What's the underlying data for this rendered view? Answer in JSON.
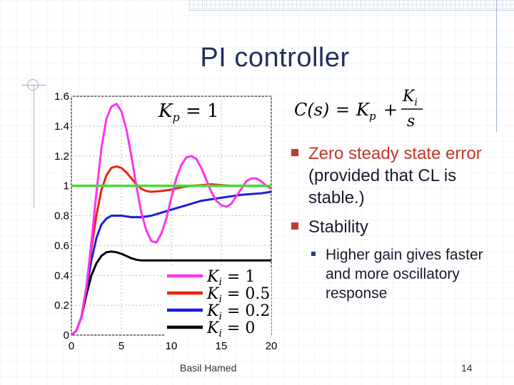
{
  "slide": {
    "title": "PI controller",
    "formula": {
      "lhs": "C(s)",
      "eq": "=",
      "kp": "K",
      "kp_sub": "p",
      "plus": "+",
      "num": "K",
      "num_sub": "i",
      "den": "s"
    },
    "bullets": [
      {
        "highlight": "Zero steady state error",
        "rest": " (provided that CL is stable.)"
      },
      {
        "highlight": "",
        "rest": "Stability"
      }
    ],
    "sub_bullets": [
      "Higher gain gives faster and more oscillatory response"
    ],
    "footer_author": "Basil Hamed",
    "page_number": "14"
  },
  "chart_data": {
    "type": "line",
    "title": "Kp = 1",
    "title_parts": {
      "k": "K",
      "sub": "p",
      "rest": " = 1"
    },
    "xlabel": "",
    "ylabel": "",
    "xlim": [
      0,
      20
    ],
    "ylim": [
      0,
      1.6
    ],
    "xticks": [
      0,
      5,
      10,
      15,
      20
    ],
    "yticks": [
      0,
      0.2,
      0.4,
      0.6,
      0.8,
      1,
      1.2,
      1.4,
      1.6
    ],
    "ytick_labels": [
      "0",
      "0.2",
      "0.4",
      "0.6",
      "0.8",
      "1",
      "1.2",
      "1.4",
      "1.6"
    ],
    "grid": true,
    "legend_position": "bottom-right",
    "reference": {
      "y": 1,
      "color": "#44dd33"
    },
    "series": [
      {
        "legend": {
          "k": "K",
          "sub": "i",
          "rest": " = 1"
        },
        "color": "#ff33ee",
        "points": [
          [
            0,
            0
          ],
          [
            0.5,
            0.03
          ],
          [
            1,
            0.12
          ],
          [
            1.5,
            0.32
          ],
          [
            2,
            0.62
          ],
          [
            2.5,
            0.95
          ],
          [
            3,
            1.25
          ],
          [
            3.5,
            1.45
          ],
          [
            4,
            1.53
          ],
          [
            4.5,
            1.55
          ],
          [
            5,
            1.5
          ],
          [
            5.5,
            1.38
          ],
          [
            6,
            1.2
          ],
          [
            6.5,
            1.0
          ],
          [
            7,
            0.82
          ],
          [
            7.5,
            0.7
          ],
          [
            8,
            0.63
          ],
          [
            8.5,
            0.62
          ],
          [
            9,
            0.68
          ],
          [
            9.5,
            0.78
          ],
          [
            10,
            0.92
          ],
          [
            10.5,
            1.05
          ],
          [
            11,
            1.14
          ],
          [
            11.5,
            1.19
          ],
          [
            12,
            1.2
          ],
          [
            12.5,
            1.18
          ],
          [
            13,
            1.12
          ],
          [
            13.5,
            1.04
          ],
          [
            14,
            0.96
          ],
          [
            14.5,
            0.9
          ],
          [
            15,
            0.87
          ],
          [
            15.5,
            0.86
          ],
          [
            16,
            0.88
          ],
          [
            16.5,
            0.93
          ],
          [
            17,
            0.98
          ],
          [
            17.5,
            1.03
          ],
          [
            18,
            1.05
          ],
          [
            18.5,
            1.05
          ],
          [
            19,
            1.03
          ],
          [
            19.5,
            1.0
          ],
          [
            20,
            0.98
          ]
        ]
      },
      {
        "legend": {
          "k": "K",
          "sub": "i",
          "rest": " = 0.5"
        },
        "color": "#ee2211",
        "points": [
          [
            0,
            0
          ],
          [
            0.5,
            0.03
          ],
          [
            1,
            0.12
          ],
          [
            1.5,
            0.32
          ],
          [
            2,
            0.58
          ],
          [
            2.5,
            0.8
          ],
          [
            3,
            0.97
          ],
          [
            3.5,
            1.07
          ],
          [
            4,
            1.12
          ],
          [
            4.5,
            1.13
          ],
          [
            5,
            1.12
          ],
          [
            5.5,
            1.09
          ],
          [
            6,
            1.05
          ],
          [
            6.5,
            1.01
          ],
          [
            7,
            0.98
          ],
          [
            7.5,
            0.965
          ],
          [
            8,
            0.96
          ],
          [
            9,
            0.965
          ],
          [
            10,
            0.975
          ],
          [
            11,
            0.99
          ],
          [
            12,
            1.0
          ],
          [
            13,
            1.005
          ],
          [
            14,
            1.01
          ],
          [
            15,
            1.005
          ],
          [
            16,
            1.0
          ],
          [
            17,
            1.0
          ],
          [
            18,
            1.0
          ],
          [
            19,
            1.0
          ],
          [
            20,
            1.0
          ]
        ]
      },
      {
        "legend": {
          "k": "K",
          "sub": "i",
          "rest": " = 0.2"
        },
        "color": "#1a1fdd",
        "points": [
          [
            0,
            0
          ],
          [
            0.5,
            0.03
          ],
          [
            1,
            0.12
          ],
          [
            1.5,
            0.3
          ],
          [
            2,
            0.5
          ],
          [
            2.5,
            0.65
          ],
          [
            3,
            0.74
          ],
          [
            3.5,
            0.78
          ],
          [
            4,
            0.8
          ],
          [
            4.5,
            0.8
          ],
          [
            5,
            0.8
          ],
          [
            6,
            0.79
          ],
          [
            7,
            0.79
          ],
          [
            8,
            0.8
          ],
          [
            9,
            0.82
          ],
          [
            10,
            0.84
          ],
          [
            11,
            0.86
          ],
          [
            12,
            0.88
          ],
          [
            13,
            0.9
          ],
          [
            14,
            0.91
          ],
          [
            15,
            0.92
          ],
          [
            16,
            0.93
          ],
          [
            17,
            0.94
          ],
          [
            18,
            0.945
          ],
          [
            19,
            0.95
          ],
          [
            20,
            0.96
          ]
        ]
      },
      {
        "legend": {
          "k": "K",
          "sub": "i",
          "rest": " = 0"
        },
        "color": "#000000",
        "points": [
          [
            0,
            0
          ],
          [
            0.5,
            0.03
          ],
          [
            1,
            0.12
          ],
          [
            1.5,
            0.27
          ],
          [
            2,
            0.4
          ],
          [
            2.5,
            0.48
          ],
          [
            3,
            0.53
          ],
          [
            3.5,
            0.555
          ],
          [
            4,
            0.56
          ],
          [
            4.5,
            0.555
          ],
          [
            5,
            0.545
          ],
          [
            5.5,
            0.53
          ],
          [
            6,
            0.515
          ],
          [
            6.5,
            0.505
          ],
          [
            7,
            0.5
          ],
          [
            8,
            0.5
          ],
          [
            9,
            0.5
          ],
          [
            10,
            0.5
          ],
          [
            12,
            0.5
          ],
          [
            14,
            0.5
          ],
          [
            16,
            0.5
          ],
          [
            18,
            0.5
          ],
          [
            20,
            0.5
          ]
        ]
      }
    ]
  }
}
